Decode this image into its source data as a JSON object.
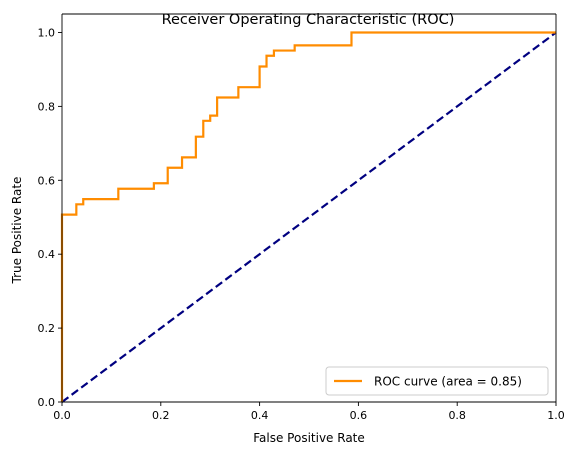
{
  "chart_data": {
    "type": "line",
    "title": "Receiver Operating Characteristic (ROC)",
    "xlabel": "False Positive Rate",
    "ylabel": "True Positive Rate",
    "xlim": [
      0.0,
      1.0
    ],
    "ylim": [
      0.0,
      1.05
    ],
    "xticks": [
      "0.0",
      "0.2",
      "0.4",
      "0.6",
      "0.8",
      "1.0"
    ],
    "yticks": [
      "0.0",
      "0.2",
      "0.4",
      "0.6",
      "0.8",
      "1.0"
    ],
    "grid": false,
    "legend_position": "lower-right",
    "series": [
      {
        "name": "ROC curve (area = 0.85)",
        "color": "#ff8c00",
        "style": "solid",
        "x": [
          0.0,
          0.0,
          0.029,
          0.029,
          0.043,
          0.043,
          0.114,
          0.114,
          0.186,
          0.186,
          0.214,
          0.214,
          0.243,
          0.243,
          0.271,
          0.271,
          0.286,
          0.286,
          0.3,
          0.3,
          0.314,
          0.314,
          0.357,
          0.357,
          0.4,
          0.4,
          0.414,
          0.414,
          0.429,
          0.429,
          0.471,
          0.471,
          0.586,
          0.586,
          1.0
        ],
        "y": [
          0.0,
          0.507,
          0.507,
          0.535,
          0.535,
          0.549,
          0.549,
          0.577,
          0.577,
          0.592,
          0.592,
          0.634,
          0.634,
          0.662,
          0.662,
          0.718,
          0.718,
          0.761,
          0.761,
          0.775,
          0.775,
          0.824,
          0.824,
          0.852,
          0.852,
          0.908,
          0.908,
          0.937,
          0.937,
          0.951,
          0.951,
          0.965,
          0.965,
          1.0,
          1.0
        ]
      },
      {
        "color": "#000080",
        "style": "dashed",
        "x": [
          0.0,
          1.0
        ],
        "y": [
          0.0,
          1.0
        ]
      }
    ]
  }
}
